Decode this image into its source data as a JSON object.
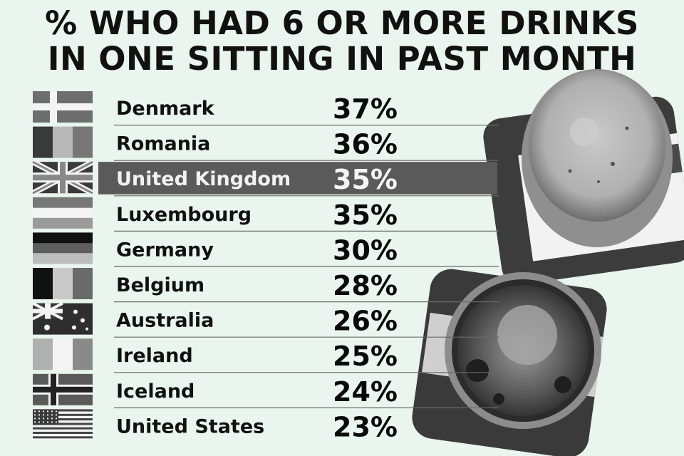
{
  "title_lines": [
    "% WHO HAD 6 OR MORE DRINKS",
    "IN ONE SITTING IN PAST MONTH"
  ],
  "colors": {
    "background": "#e9f5ee",
    "text": "#111111",
    "highlight_band": "#5a5a5a",
    "divider": "#6a6a6a",
    "coaster": "#3c3c3c",
    "beer_foam": "#d9d9d9",
    "beer_dark": "#2a2a2a"
  },
  "chart_data": {
    "type": "table",
    "title": "% WHO HAD 6 OR MORE DRINKS IN ONE SITTING IN PAST MONTH",
    "highlight": "United Kingdom",
    "categories": [
      "Denmark",
      "Romania",
      "United Kingdom",
      "Luxembourg",
      "Germany",
      "Belgium",
      "Australia",
      "Ireland",
      "Iceland",
      "United States"
    ],
    "values": [
      37,
      36,
      35,
      35,
      30,
      28,
      26,
      25,
      24,
      23
    ],
    "value_labels": [
      "37%",
      "36%",
      "35%",
      "35%",
      "30%",
      "28%",
      "26%",
      "25%",
      "24%",
      "23%"
    ],
    "flags": [
      "denmark-flag",
      "romania-flag",
      "united-kingdom-flag",
      "luxembourg-flag",
      "germany-flag",
      "belgium-flag",
      "australia-flag",
      "ireland-flag",
      "iceland-flag",
      "united-states-flag"
    ]
  },
  "decorations": [
    "beer-glass-on-coaster-top",
    "beer-glass-on-coaster-bottom"
  ]
}
